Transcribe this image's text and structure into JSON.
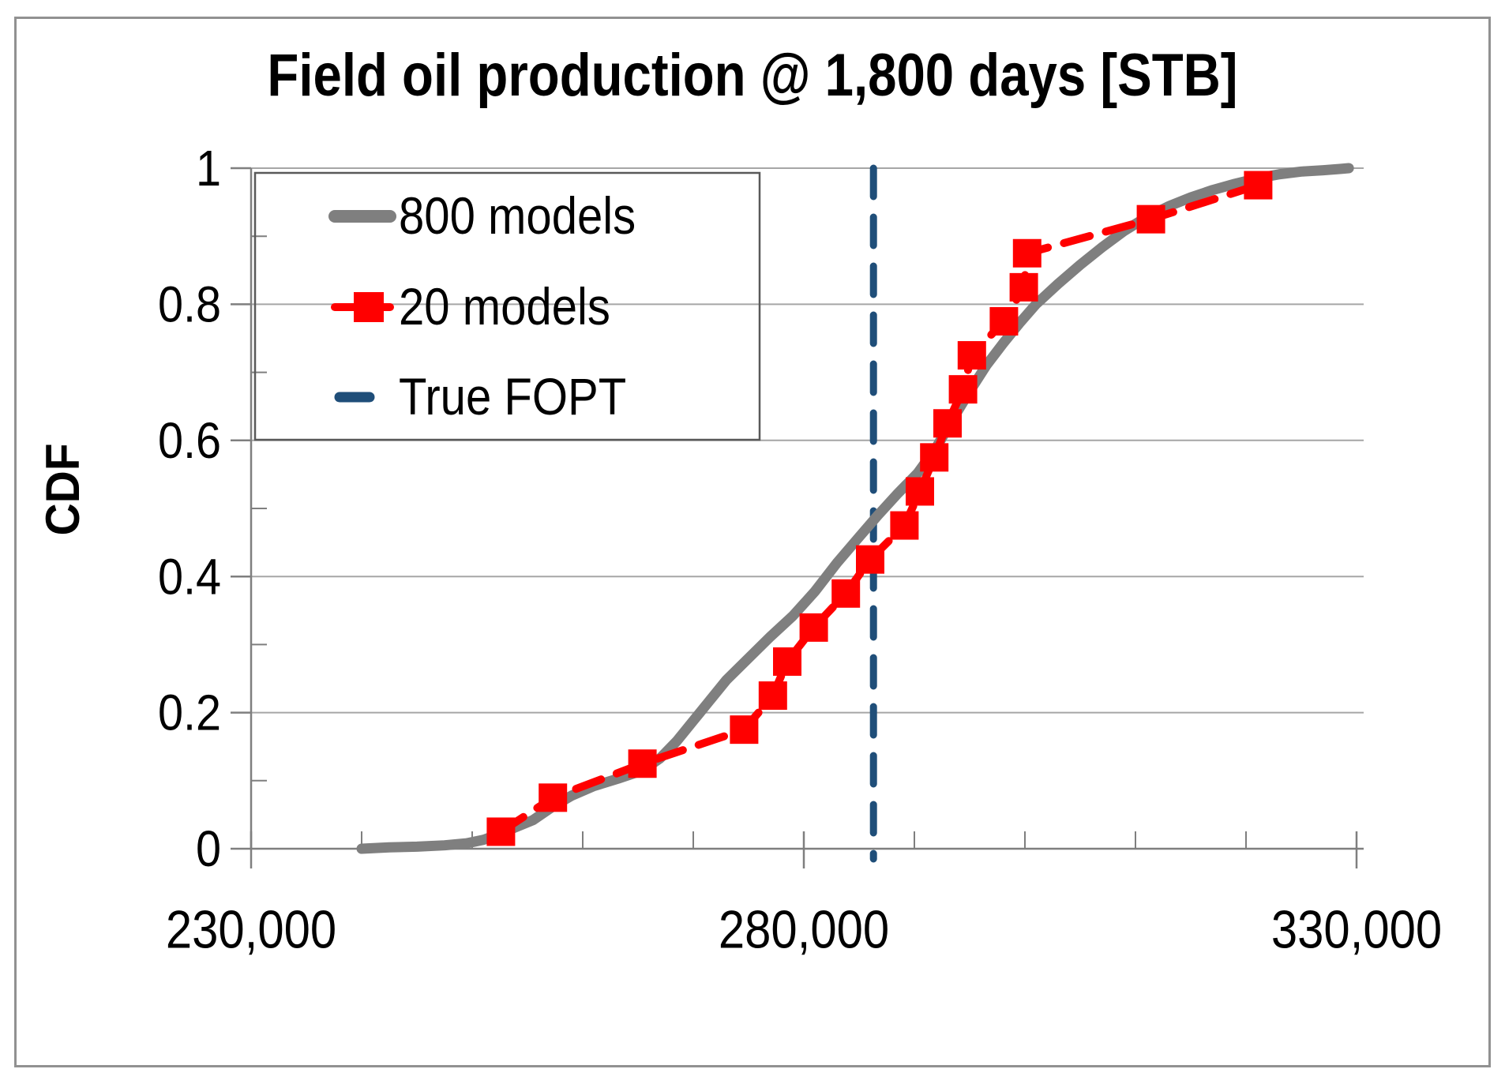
{
  "chart_data": {
    "type": "line",
    "title": "Field oil production @ 1,800 days [STB]",
    "xlabel": "",
    "ylabel": "CDF",
    "xlim": [
      230000,
      330000
    ],
    "ylim": [
      0,
      1
    ],
    "x_tick_values": [
      230000,
      280000,
      330000
    ],
    "x_tick_labels": [
      "230,000",
      "280,000",
      "330,000"
    ],
    "x_minor_tick_step": 10000,
    "y_tick_values": [
      0,
      0.2,
      0.4,
      0.6,
      0.8,
      1
    ],
    "y_tick_labels": [
      "0",
      "0.2",
      "0.4",
      "0.6",
      "0.8",
      "1"
    ],
    "y_minor_tick_step": 0.1,
    "grid": "horizontal-only",
    "legend_position": "top-left-inside",
    "colors": {
      "models_800": "#7F7F7F",
      "models_20": "#FF0000",
      "true_fopt": "#1F4E79",
      "gridline": "#A6A6A6",
      "axis": "#7F7F7F",
      "legend_border": "#595959",
      "figure_border": "#919191",
      "text": "#000000"
    },
    "series": [
      {
        "name": "800 models",
        "kind": "line",
        "points": [
          [
            240000,
            0.0
          ],
          [
            242500,
            0.002
          ],
          [
            245000,
            0.003
          ],
          [
            247500,
            0.005
          ],
          [
            249500,
            0.008
          ],
          [
            251000,
            0.013
          ],
          [
            252500,
            0.022
          ],
          [
            254000,
            0.032
          ],
          [
            255500,
            0.042
          ],
          [
            257300,
            0.062
          ],
          [
            259000,
            0.078
          ],
          [
            261000,
            0.092
          ],
          [
            263200,
            0.103
          ],
          [
            265400,
            0.115
          ],
          [
            267000,
            0.133
          ],
          [
            268500,
            0.158
          ],
          [
            270000,
            0.188
          ],
          [
            271500,
            0.218
          ],
          [
            273000,
            0.248
          ],
          [
            275000,
            0.28
          ],
          [
            277000,
            0.312
          ],
          [
            279000,
            0.342
          ],
          [
            281000,
            0.378
          ],
          [
            283000,
            0.42
          ],
          [
            285000,
            0.458
          ],
          [
            286700,
            0.49
          ],
          [
            288500,
            0.522
          ],
          [
            290300,
            0.552
          ],
          [
            292000,
            0.59
          ],
          [
            293500,
            0.632
          ],
          [
            295000,
            0.672
          ],
          [
            296500,
            0.71
          ],
          [
            298000,
            0.742
          ],
          [
            299500,
            0.772
          ],
          [
            301000,
            0.8
          ],
          [
            303000,
            0.83
          ],
          [
            305000,
            0.858
          ],
          [
            307000,
            0.884
          ],
          [
            309000,
            0.908
          ],
          [
            311000,
            0.928
          ],
          [
            313000,
            0.944
          ],
          [
            315000,
            0.957
          ],
          [
            317000,
            0.968
          ],
          [
            319000,
            0.977
          ],
          [
            321000,
            0.985
          ],
          [
            323000,
            0.991
          ],
          [
            325000,
            0.995
          ],
          [
            327000,
            0.997
          ],
          [
            328600,
            0.999
          ],
          [
            329300,
            1.0
          ]
        ]
      },
      {
        "name": "20 models",
        "kind": "dashed-line-with-square-markers",
        "points": [
          [
            252600,
            0.025
          ],
          [
            257300,
            0.075
          ],
          [
            265400,
            0.125
          ],
          [
            274600,
            0.175
          ],
          [
            277200,
            0.225
          ],
          [
            278500,
            0.275
          ],
          [
            280900,
            0.325
          ],
          [
            283800,
            0.375
          ],
          [
            286000,
            0.425
          ],
          [
            289100,
            0.475
          ],
          [
            290500,
            0.525
          ],
          [
            291800,
            0.575
          ],
          [
            293000,
            0.625
          ],
          [
            294400,
            0.675
          ],
          [
            295200,
            0.725
          ],
          [
            298100,
            0.775
          ],
          [
            299900,
            0.825
          ],
          [
            300200,
            0.875
          ],
          [
            311400,
            0.925
          ],
          [
            321100,
            0.975
          ]
        ]
      },
      {
        "name": "True FOPT",
        "kind": "vertical-dashed-line",
        "x": 286300
      }
    ]
  }
}
